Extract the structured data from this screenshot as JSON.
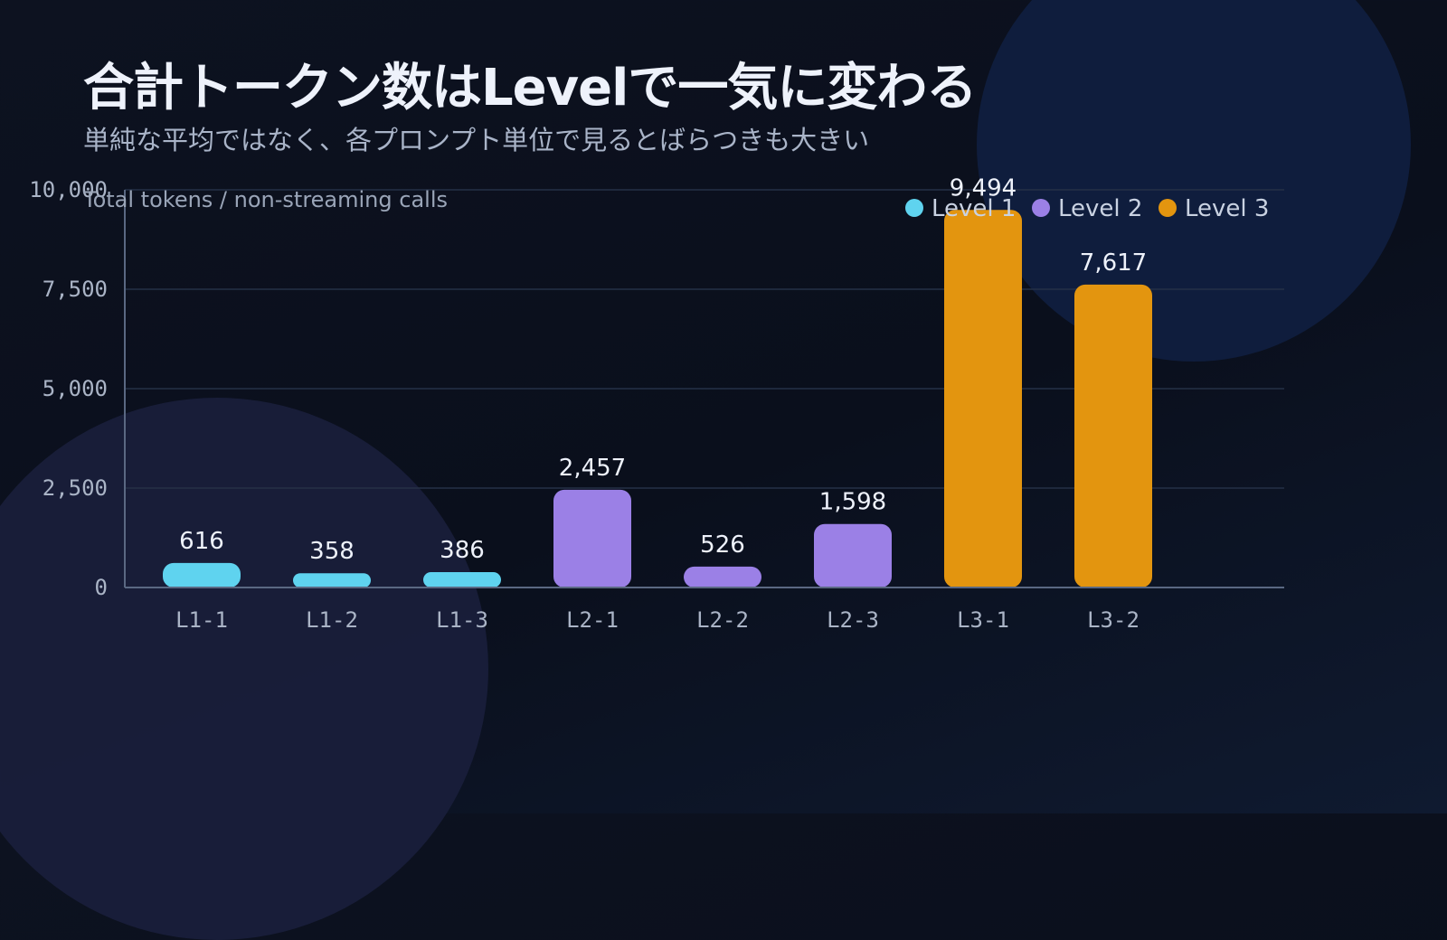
{
  "title": "合計トークン数はLevelで一気に変わる",
  "subtitle": "単純な平均ではなく、各プロンプト単位で見るとばらつきも大きい",
  "colors": {
    "level1": "#5fd3ef",
    "level2": "#9b80e6",
    "level3": "#e3950f",
    "grid": "#253046",
    "axis": "#5a6882"
  },
  "chart_data": {
    "type": "bar",
    "ylabel": "Total tokens / non-streaming calls",
    "ylim": [
      0,
      10000
    ],
    "yticks": [
      0,
      2500,
      5000,
      7500,
      10000
    ],
    "ytick_labels": [
      "0",
      "2,500",
      "5,000",
      "7,500",
      "10,000"
    ],
    "grid": true,
    "legend_position": "top-right",
    "legend": [
      {
        "name": "Level 1",
        "color": "#5fd3ef"
      },
      {
        "name": "Level 2",
        "color": "#9b80e6"
      },
      {
        "name": "Level 3",
        "color": "#e3950f"
      }
    ],
    "categories": [
      "L1-1",
      "L1-2",
      "L1-3",
      "L2-1",
      "L2-2",
      "L2-3",
      "L3-1",
      "L3-2"
    ],
    "values": [
      616,
      358,
      386,
      2457,
      526,
      1598,
      9494,
      7617
    ],
    "value_labels": [
      "616",
      "358",
      "386",
      "2,457",
      "526",
      "1,598",
      "9,494",
      "7,617"
    ],
    "bar_group": [
      0,
      0,
      0,
      1,
      1,
      1,
      2,
      2
    ]
  }
}
